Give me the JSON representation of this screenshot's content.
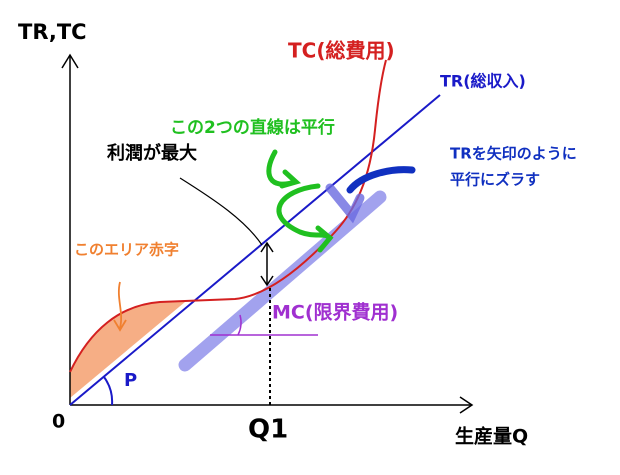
{
  "axes": {
    "y_label": "TR,TC",
    "x_label": "生産量Q",
    "origin": "0",
    "q1": "Q1"
  },
  "labels": {
    "tc": "TC(総費用)",
    "tr": "TR(総収入)",
    "parallel": "この2つの直線は平行",
    "profit": "利潤が最大",
    "shift_line1": "TRを矢印のように",
    "shift_line2": "平行にズラす",
    "loss": "このエリア赤字",
    "mc": "MC(限界費用)",
    "p": "P"
  }
}
